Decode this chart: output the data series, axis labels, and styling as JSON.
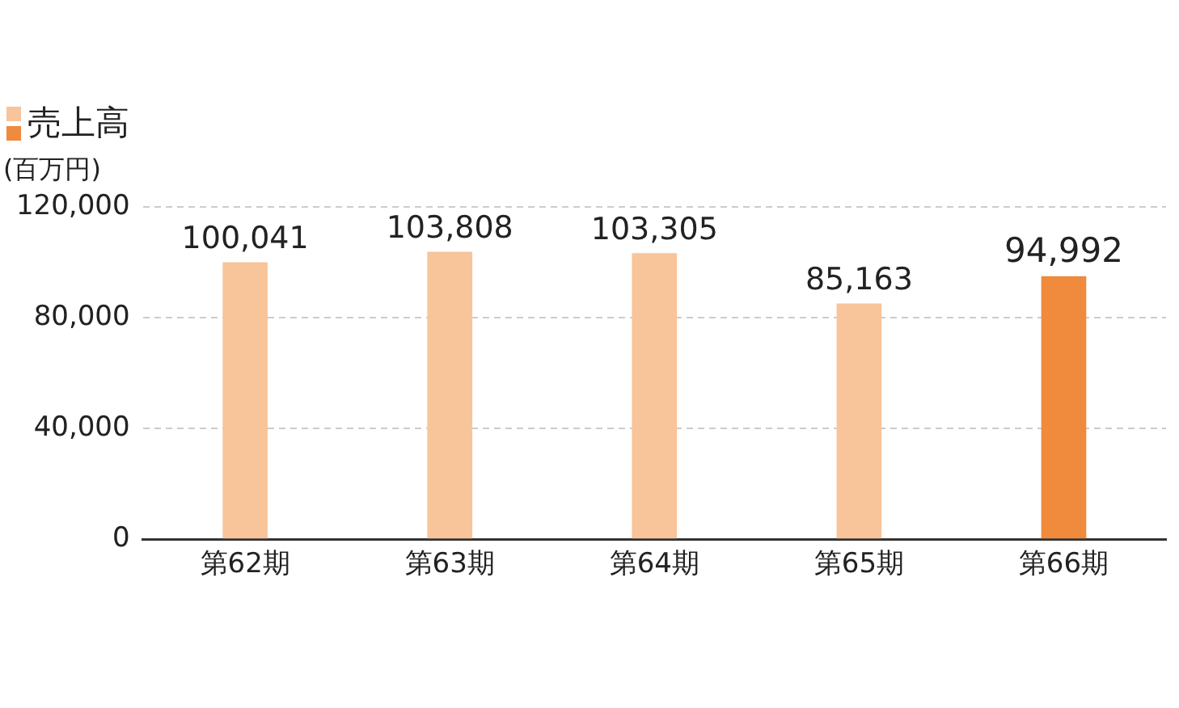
{
  "chart_data": {
    "type": "bar",
    "ylabel": "(百万円)",
    "categories": [
      "第62期",
      "第63期",
      "第64期",
      "第65期",
      "第66期"
    ],
    "series": [
      {
        "name": "売上高",
        "colors": [
          "#f8c49a",
          "#f8c49a",
          "#f8c49a",
          "#f8c49a",
          "#f08a3c"
        ],
        "values": [
          100041,
          103808,
          103305,
          85163,
          94992
        ],
        "value_labels": [
          "100,041",
          "103,808",
          "103,305",
          "85,163",
          "94,992"
        ]
      }
    ],
    "ylim": [
      0,
      120000
    ],
    "yticks": [
      0,
      {
        "value": 40000,
        "label": "40,000"
      },
      {
        "value": 80000,
        "label": "80,000"
      },
      {
        "value": 120000,
        "label": "120,000"
      }
    ],
    "grid": "y",
    "legend": "top left"
  }
}
